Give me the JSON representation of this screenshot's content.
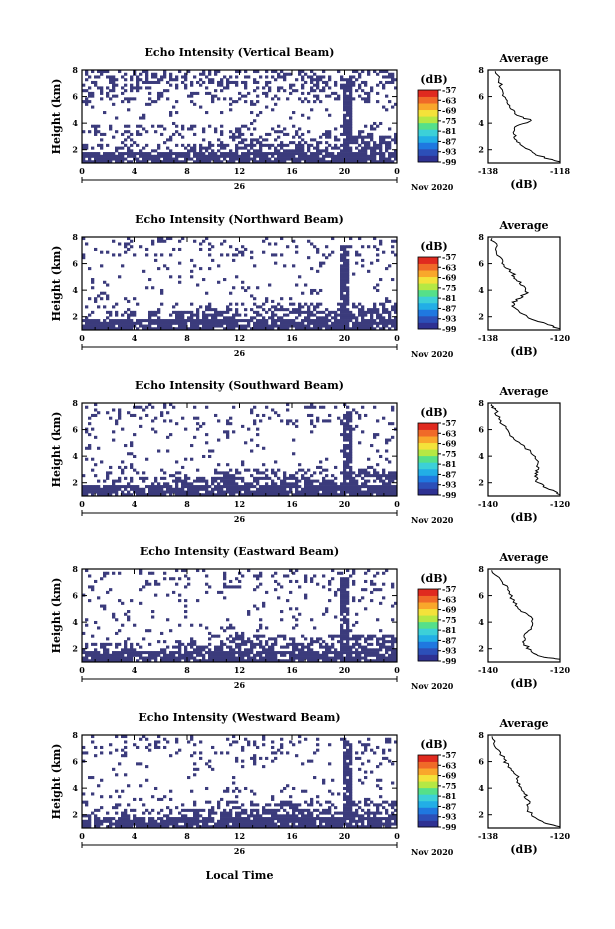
{
  "figure": {
    "xlabel": "Local Time",
    "day_label": "26",
    "month_year": "Nov 2020",
    "x_ticks": [
      "0",
      "4",
      "8",
      "12",
      "16",
      "20",
      "0"
    ],
    "y_ticks": [
      "2",
      "4",
      "6",
      "8"
    ],
    "ylabel": "Height (km)",
    "colorbar_unit": "(dB)",
    "colorbar_ticks": [
      "-57",
      "-63",
      "-69",
      "-75",
      "-81",
      "-87",
      "-93",
      "-99"
    ],
    "colorbar_colors": [
      "#2e3192",
      "#2c4fb8",
      "#1f78e0",
      "#22aee6",
      "#3cd0d8",
      "#55e08a",
      "#b5e844",
      "#f4e23a",
      "#f9a72b",
      "#f06a28",
      "#e02a1f"
    ],
    "no_data_color": "#3b3b7c",
    "avg_title": "Average",
    "avg_xlabel": "(dB)"
  },
  "chart_data": [
    {
      "type": "heatmap",
      "title": "Echo Intensity (Vertical Beam)",
      "profile": {
        "type": "line",
        "xlim": [
          -138,
          -118
        ],
        "x_ticks": [
          "-138",
          "-118"
        ],
        "ylim": [
          1,
          8
        ],
        "points": [
          [
            -118,
            1.1
          ],
          [
            -121,
            1.3
          ],
          [
            -125,
            1.7
          ],
          [
            -128,
            2.2
          ],
          [
            -130,
            2.7
          ],
          [
            -131,
            3.3
          ],
          [
            -130,
            3.8
          ],
          [
            -126,
            4.2
          ],
          [
            -130,
            4.6
          ],
          [
            -132,
            5.2
          ],
          [
            -133,
            5.8
          ],
          [
            -134,
            6.5
          ],
          [
            -135,
            7.2
          ],
          [
            -136,
            7.9
          ]
        ]
      }
    },
    {
      "type": "heatmap",
      "title": "Echo Intensity (Northward Beam)",
      "profile": {
        "type": "line",
        "xlim": [
          -138,
          -120
        ],
        "x_ticks": [
          "-138",
          "-120"
        ],
        "ylim": [
          1,
          8
        ],
        "points": [
          [
            -120,
            1.1
          ],
          [
            -123,
            1.4
          ],
          [
            -127,
            1.8
          ],
          [
            -130,
            2.3
          ],
          [
            -132,
            2.8
          ],
          [
            -131,
            3.3
          ],
          [
            -128,
            3.8
          ],
          [
            -129,
            4.3
          ],
          [
            -131,
            4.8
          ],
          [
            -132,
            5.3
          ],
          [
            -134,
            5.9
          ],
          [
            -135,
            6.5
          ],
          [
            -136,
            7.2
          ],
          [
            -137,
            7.9
          ]
        ]
      }
    },
    {
      "type": "heatmap",
      "title": "Echo Intensity (Southward Beam)",
      "profile": {
        "type": "line",
        "xlim": [
          -140,
          -120
        ],
        "x_ticks": [
          "-140",
          "-120"
        ],
        "ylim": [
          1,
          8
        ],
        "points": [
          [
            -120,
            1.1
          ],
          [
            -123,
            1.5
          ],
          [
            -126,
            2.0
          ],
          [
            -127,
            2.5
          ],
          [
            -126,
            3.0
          ],
          [
            -126,
            3.6
          ],
          [
            -128,
            4.2
          ],
          [
            -130,
            4.8
          ],
          [
            -133,
            5.4
          ],
          [
            -135,
            6.1
          ],
          [
            -137,
            6.8
          ],
          [
            -138,
            7.5
          ],
          [
            -139,
            7.9
          ]
        ]
      }
    },
    {
      "type": "heatmap",
      "title": "Echo Intensity (Eastward Beam)",
      "profile": {
        "type": "line",
        "xlim": [
          -140,
          -120
        ],
        "x_ticks": [
          "-140",
          "-120"
        ],
        "ylim": [
          1,
          8
        ],
        "points": [
          [
            -120,
            1.2
          ],
          [
            -125,
            1.4
          ],
          [
            -128,
            1.8
          ],
          [
            -130,
            2.4
          ],
          [
            -130,
            3.0
          ],
          [
            -128,
            3.6
          ],
          [
            -128,
            4.4
          ],
          [
            -131,
            4.9
          ],
          [
            -133,
            5.5
          ],
          [
            -134,
            6.3
          ],
          [
            -136,
            7.0
          ],
          [
            -139,
            7.9
          ]
        ]
      }
    },
    {
      "type": "heatmap",
      "title": "Echo Intensity (Westward Beam)",
      "profile": {
        "type": "line",
        "xlim": [
          -138,
          -120
        ],
        "x_ticks": [
          "-138",
          "-120"
        ],
        "ylim": [
          1,
          8
        ],
        "points": [
          [
            -120,
            1.1
          ],
          [
            -124,
            1.4
          ],
          [
            -127,
            1.9
          ],
          [
            -128,
            2.5
          ],
          [
            -128,
            3.1
          ],
          [
            -129,
            3.7
          ],
          [
            -130,
            4.3
          ],
          [
            -131,
            5.0
          ],
          [
            -133,
            5.6
          ],
          [
            -134,
            6.2
          ],
          [
            -136,
            7.0
          ],
          [
            -137,
            7.9
          ]
        ]
      }
    }
  ]
}
